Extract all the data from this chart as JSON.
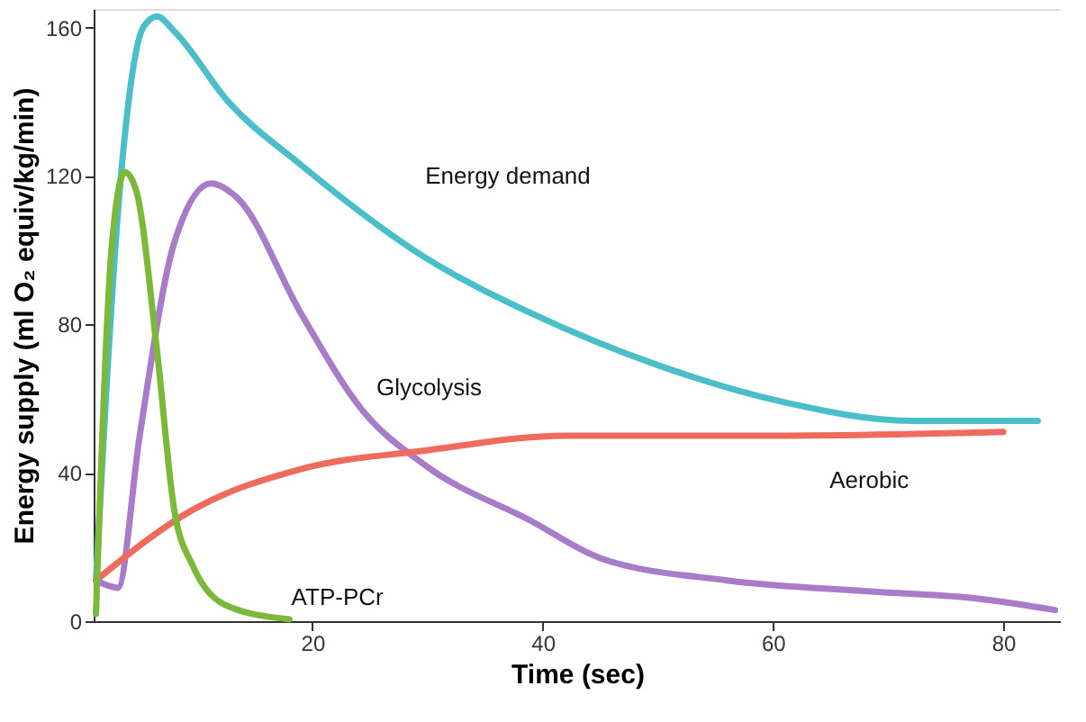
{
  "chart_data": {
    "type": "line",
    "xlabel": "Time (sec)",
    "ylabel": "Energy supply (ml O₂ equiv/kg/min)",
    "xlim": [
      1,
      85
    ],
    "ylim": [
      0,
      165
    ],
    "xticks": [
      20,
      40,
      60,
      80
    ],
    "yticks": [
      0,
      40,
      80,
      120,
      160
    ],
    "grid": false,
    "marker": "none",
    "line_style": "solid",
    "series": [
      {
        "name": "Energy demand",
        "color": "#4bbfc9",
        "x": [
          1.2,
          3.4,
          5.3,
          6.5,
          8,
          12.7,
          19,
          29.8,
          39,
          50,
          61,
          72,
          83
        ],
        "values": [
          11,
          121,
          160,
          163,
          159,
          140,
          123,
          98,
          83,
          69,
          59,
          54,
          54
        ]
      },
      {
        "name": "Glycolysis",
        "color": "#a87cc9",
        "x": [
          1.2,
          3.1,
          5,
          8,
          11.2,
          13.5,
          19,
          24.3,
          29.8,
          39,
          45,
          56,
          68.5,
          78,
          84.5
        ],
        "values": [
          11,
          9,
          50,
          102,
          118,
          114,
          83,
          57,
          42,
          27,
          17,
          11,
          8,
          6,
          3
        ]
      },
      {
        "name": "Aerobic",
        "color": "#ef6b5e",
        "x": [
          1.2,
          9.6,
          19,
          29.8,
          42,
          61,
          80
        ],
        "values": [
          11,
          30,
          41,
          46,
          50,
          50,
          51
        ]
      },
      {
        "name": "ATP-PCr",
        "color": "#7cb83a",
        "x": [
          1.2,
          2.6,
          3.7,
          4.7,
          6.5,
          8,
          9.6,
          12.7,
          18
        ],
        "values": [
          2,
          102,
          121,
          116,
          73,
          30,
          15,
          4,
          0.5
        ]
      }
    ]
  }
}
